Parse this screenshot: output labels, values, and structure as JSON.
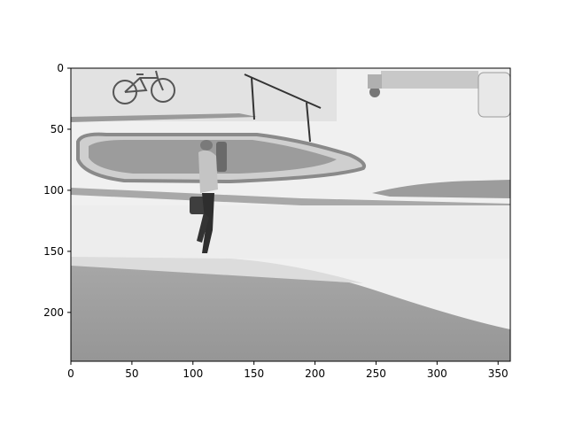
{
  "figure": {
    "image_description_icon": "grayscale-street-photo",
    "x_ticks": [
      "0",
      "50",
      "100",
      "150",
      "200",
      "250",
      "300",
      "350"
    ],
    "y_ticks": [
      "0",
      "50",
      "100",
      "150",
      "200"
    ],
    "x_range": [
      0,
      360
    ],
    "y_range": [
      240,
      0
    ],
    "frame_color": "#000000"
  }
}
